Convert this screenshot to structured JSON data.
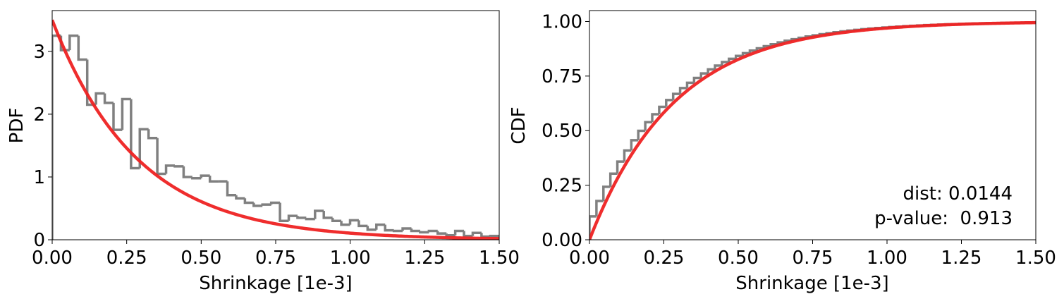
{
  "chart_data": [
    {
      "type": "histogram+line",
      "title": "",
      "xlabel": "Shrinkage [1e-3]",
      "ylabel": "PDF",
      "xlim": [
        0,
        1.5
      ],
      "ylim": [
        0,
        3.65
      ],
      "xticks": [
        "0.00",
        "0.25",
        "0.50",
        "0.75",
        "1.00",
        "1.25",
        "1.50"
      ],
      "yticks": [
        "0",
        "1",
        "2",
        "3"
      ],
      "xtick_values": [
        0,
        0.25,
        0.5,
        0.75,
        1.0,
        1.25,
        1.5
      ],
      "ytick_values": [
        0,
        1,
        2,
        3
      ],
      "grid": false,
      "colors": {
        "histogram": "#808080",
        "fit": "#ee2222"
      },
      "histogram": {
        "bin_width": 0.0294,
        "values": [
          3.25,
          3.02,
          3.25,
          2.87,
          2.15,
          2.33,
          2.18,
          1.75,
          2.24,
          1.14,
          1.76,
          1.62,
          1.05,
          1.18,
          1.17,
          1.0,
          0.98,
          1.02,
          0.93,
          0.93,
          0.71,
          0.66,
          0.59,
          0.54,
          0.56,
          0.59,
          0.3,
          0.38,
          0.35,
          0.33,
          0.46,
          0.35,
          0.3,
          0.24,
          0.31,
          0.22,
          0.16,
          0.24,
          0.15,
          0.14,
          0.18,
          0.14,
          0.12,
          0.14,
          0.1,
          0.07,
          0.14,
          0.06,
          0.11,
          0.05,
          0.06,
          0.04,
          0.04,
          0.03,
          0.04,
          0.05,
          0.02,
          0.03,
          0.04,
          0.06,
          0.07,
          0.04,
          0.04,
          0.03,
          0.03,
          0.03,
          0.02,
          0.02,
          0.02,
          0.02,
          0.02,
          0.01,
          0.02,
          0.02,
          0.03,
          0.02,
          0.01,
          0.01,
          0.01,
          0.02
        ]
      },
      "fit": {
        "kind": "exponential-pdf",
        "lambda": 3.5
      }
    },
    {
      "type": "step+line",
      "title": "",
      "xlabel": "Shrinkage [1e-3]",
      "ylabel": "CDF",
      "xlim": [
        0,
        1.5
      ],
      "ylim": [
        0,
        1.05
      ],
      "xticks": [
        "0.00",
        "0.25",
        "0.50",
        "0.75",
        "1.00",
        "1.25",
        "1.50"
      ],
      "yticks": [
        "0.00",
        "0.25",
        "0.50",
        "0.75",
        "1.00"
      ],
      "xtick_values": [
        0,
        0.25,
        0.5,
        0.75,
        1.0,
        1.25,
        1.5
      ],
      "ytick_values": [
        0,
        0.25,
        0.5,
        0.75,
        1.0
      ],
      "grid": false,
      "colors": {
        "empirical": "#808080",
        "fit": "#ee2222"
      },
      "empirical_steps": {
        "n": 64,
        "lambda": 3.5,
        "offset": 0.03
      },
      "fit": {
        "kind": "exponential-cdf",
        "lambda": 3.5
      },
      "annotations": [
        "dist: 0.0144",
        "p-value:  0.913"
      ]
    }
  ]
}
